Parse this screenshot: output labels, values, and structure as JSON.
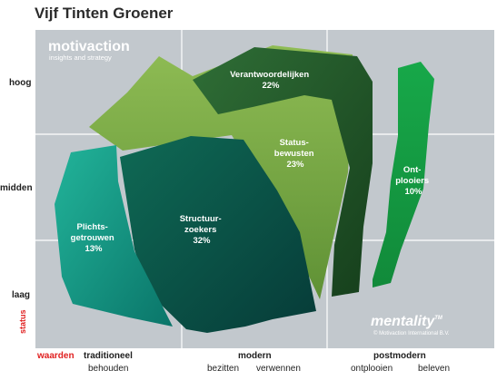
{
  "title": "Vijf Tinten Groener",
  "logo": {
    "name": "motivaction",
    "tagline": "insights and strategy"
  },
  "brand": {
    "name": "mentality",
    "trademark": "TM",
    "copyright": "© Motivaction International B.V."
  },
  "y_axis": {
    "label": "status",
    "levels": [
      "hoog",
      "midden",
      "laag"
    ]
  },
  "x_axis": {
    "label": "waarden",
    "groups": [
      {
        "name": "traditioneel",
        "subs": [
          "behouden"
        ]
      },
      {
        "name": "modern",
        "subs": [
          "bezitten",
          "verwennen"
        ]
      },
      {
        "name": "postmodern",
        "subs": [
          "ontplooien",
          "beleven"
        ]
      }
    ]
  },
  "segments": [
    {
      "name": "Verantwoordelijken",
      "lines": [
        "Verantwoordelijken"
      ],
      "value": "22%",
      "color": "#2d6b35"
    },
    {
      "name": "Statusbewusten",
      "lines": [
        "Status-",
        "bewusten"
      ],
      "value": "23%",
      "color": "#7fae45"
    },
    {
      "name": "Structuurzoekers",
      "lines": [
        "Structuur-",
        "zoekers"
      ],
      "value": "32%",
      "color": "#0e5c4f"
    },
    {
      "name": "Plichtsgetrouwen",
      "lines": [
        "Plichts-",
        "getrouwen"
      ],
      "value": "13%",
      "color": "#1a9c85"
    },
    {
      "name": "Ontplooiers",
      "lines": [
        "Ont-",
        "plooiers"
      ],
      "value": "10%",
      "color": "#2aa552"
    }
  ],
  "colors": {
    "grid_bg": "#c2c8cd",
    "grid_line": "#ffffff"
  }
}
